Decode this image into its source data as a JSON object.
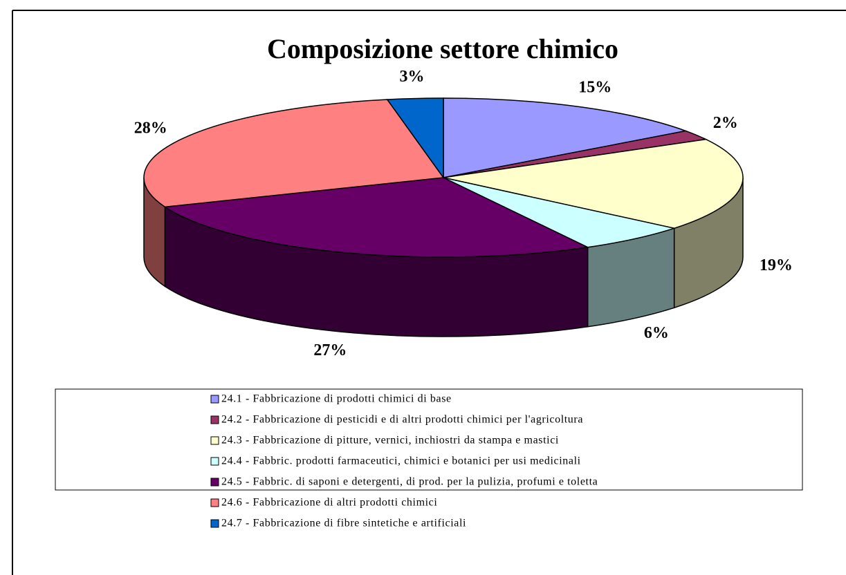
{
  "chart_data": {
    "type": "pie",
    "title": "Composizione settore chimico",
    "categories": [
      "24.1 - Fabbricazione di prodotti chimici di base",
      "24.2 - Fabbricazione di pesticidi e di altri prodotti chimici per l'agricoltura",
      "24.3 - Fabbricazione di pitture, vernici, inchiostri da stampa e mastici",
      "24.4 - Fabbric. prodotti farmaceutici, chimici e botanici per usi medicinali",
      "24.5 - Fabbric. di saponi e detergenti, di prod. per la pulizia, profumi e toletta",
      "24.6 - Fabbricazione di altri prodotti chimici",
      "24.7 - Fabbricazione di fibre sintetiche e artificiali"
    ],
    "values": [
      15,
      2,
      19,
      6,
      27,
      28,
      3
    ],
    "value_labels": [
      "15%",
      "2%",
      "19%",
      "6%",
      "27%",
      "28%",
      "3%"
    ],
    "colors": [
      "#9999ff",
      "#993366",
      "#ffffcc",
      "#ccffff",
      "#660066",
      "#ff8080",
      "#0066cc"
    ],
    "legend": "bottom"
  }
}
